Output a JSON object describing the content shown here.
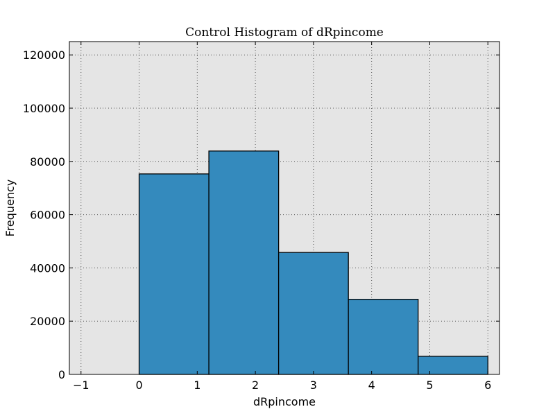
{
  "chart_data": {
    "type": "bar",
    "title": "Control Histogram of dRpincome",
    "xlabel": "dRpincome",
    "ylabel": "Frequency",
    "xlim": [
      -1.2,
      6.2
    ],
    "ylim": [
      0,
      125000
    ],
    "x_ticks": [
      -1,
      0,
      1,
      2,
      3,
      4,
      5,
      6
    ],
    "x_tick_labels": [
      "−1",
      "0",
      "1",
      "2",
      "3",
      "4",
      "5",
      "6"
    ],
    "y_ticks": [
      0,
      20000,
      40000,
      60000,
      80000,
      100000,
      120000
    ],
    "y_tick_labels": [
      "0",
      "20000",
      "40000",
      "60000",
      "80000",
      "100000",
      "120000"
    ],
    "bins": [
      {
        "start": 0.0,
        "end": 1.2,
        "value": 75300
      },
      {
        "start": 1.2,
        "end": 2.4,
        "value": 83900
      },
      {
        "start": 2.4,
        "end": 3.6,
        "value": 45800
      },
      {
        "start": 3.6,
        "end": 4.8,
        "value": 28200
      },
      {
        "start": 4.8,
        "end": 6.0,
        "value": 6800
      }
    ],
    "grid": true,
    "legend": "none",
    "colors": {
      "bar_fill": "#348ABD",
      "bar_edge": "#000000",
      "plot_background": "#E5E5E5",
      "grid": "#555555"
    }
  }
}
